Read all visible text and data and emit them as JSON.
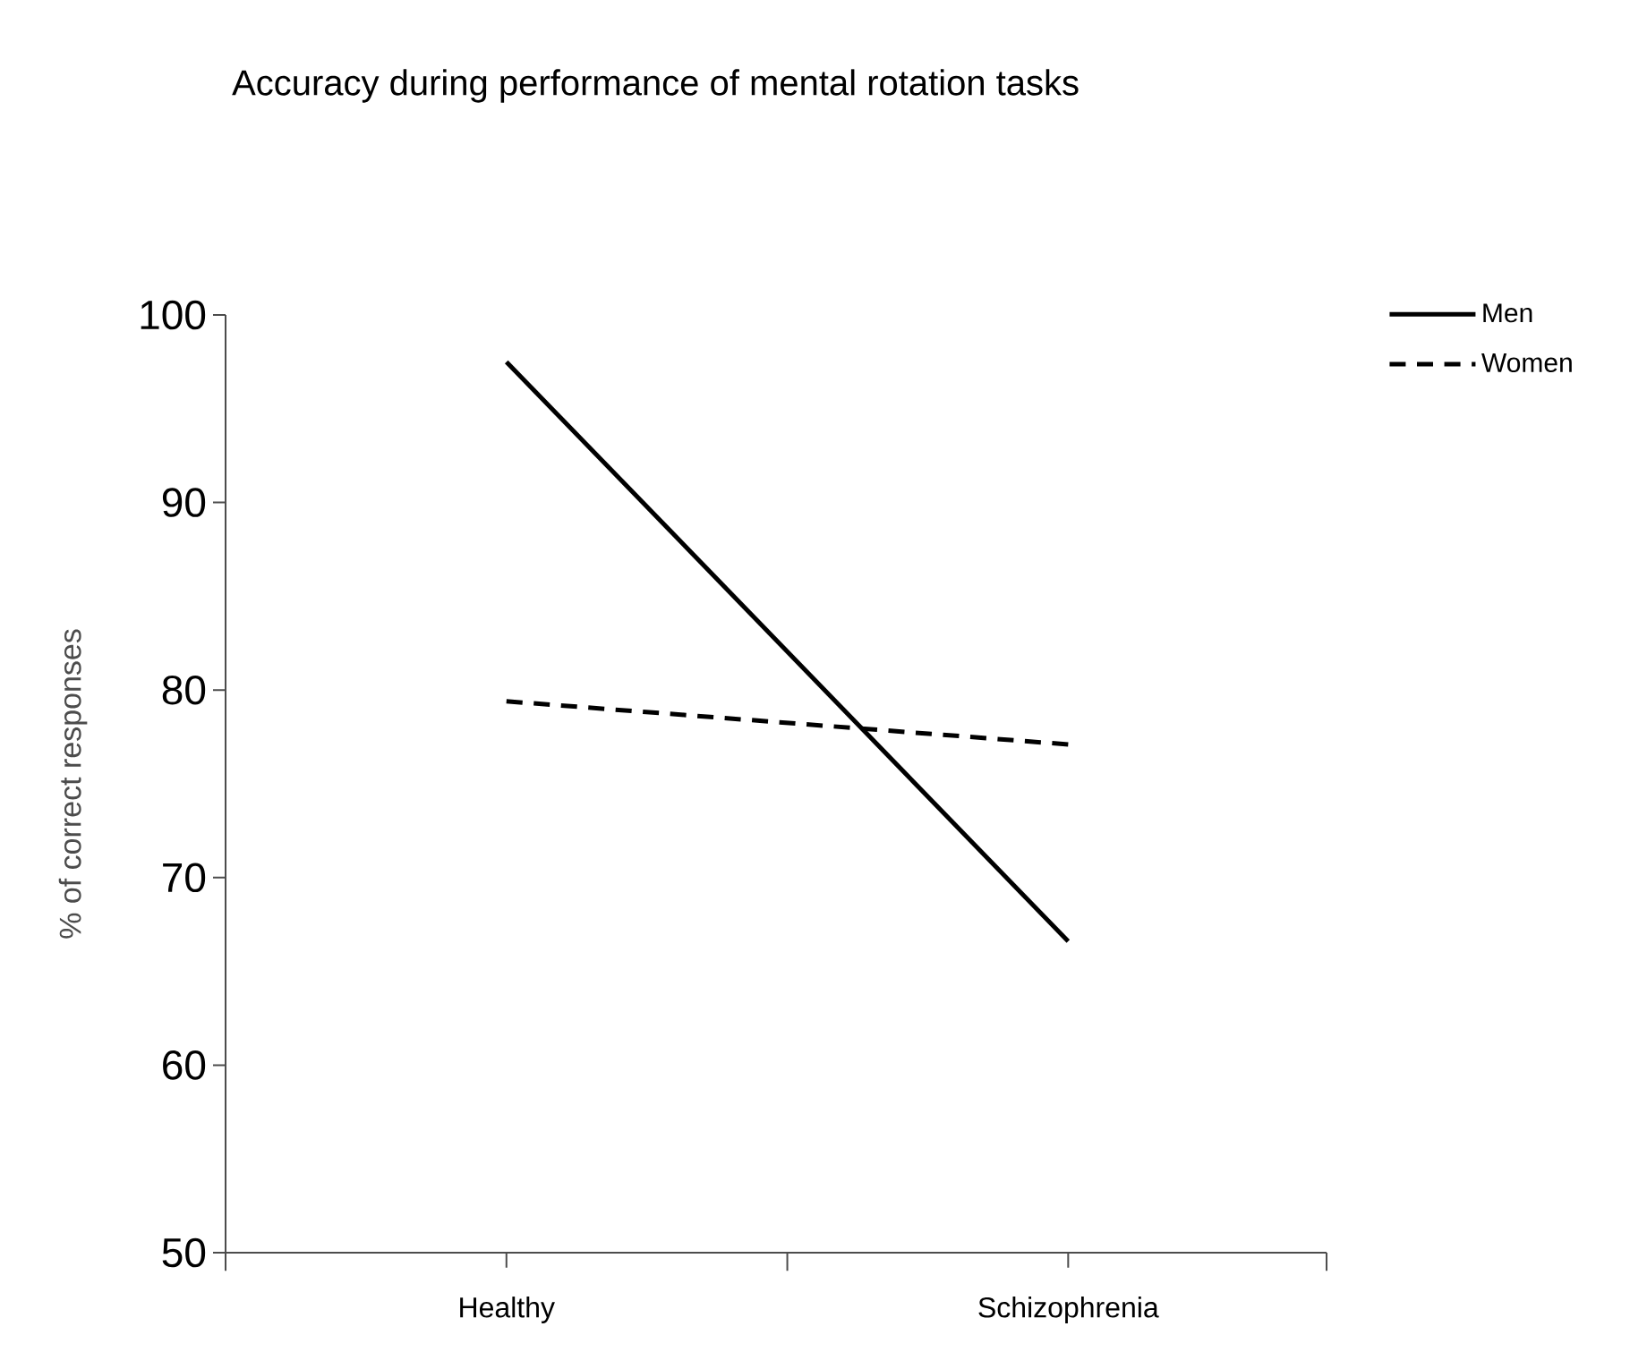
{
  "chart_data": {
    "type": "line",
    "title": "Accuracy during performance of mental rotation tasks",
    "ylabel": "% of correct responses",
    "categories": [
      "Healthy",
      "Schizophrenia"
    ],
    "series": [
      {
        "name": "Men",
        "color": "#000000",
        "line_style": "solid",
        "values": [
          97.5,
          66.6
        ]
      },
      {
        "name": "Women",
        "color": "#000000",
        "line_style": "dashed",
        "values": [
          79.4,
          77.1
        ]
      }
    ],
    "ylim": [
      50,
      100
    ],
    "yticks": [
      50,
      60,
      70,
      80,
      90,
      100
    ],
    "grid": false,
    "legend": "top right",
    "marker": "none"
  }
}
